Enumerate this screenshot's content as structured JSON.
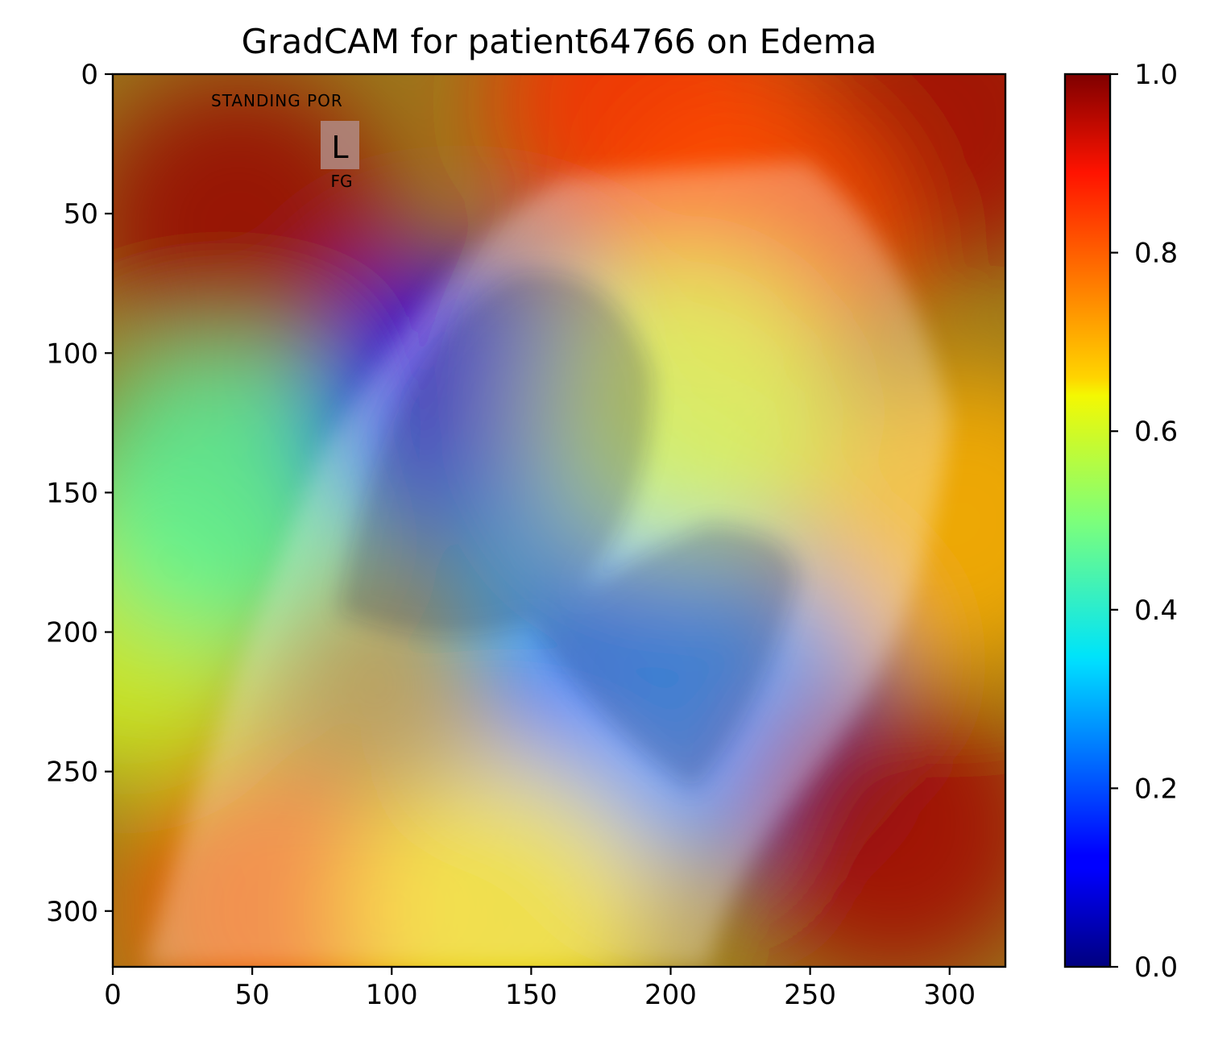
{
  "chart_data": {
    "type": "heatmap",
    "title": "GradCAM for patient64766 on Edema",
    "xlabel": "",
    "ylabel": "",
    "xlim": [
      0,
      320
    ],
    "ylim": [
      320,
      0
    ],
    "x_ticks": [
      0,
      50,
      100,
      150,
      200,
      250,
      300
    ],
    "y_ticks": [
      0,
      50,
      100,
      150,
      200,
      250,
      300
    ],
    "colormap": "jet",
    "colorbar": {
      "range": [
        0.0,
        1.0
      ],
      "ticks": [
        "0.0",
        "0.2",
        "0.4",
        "0.6",
        "0.8",
        "1.0"
      ]
    },
    "overlay_texts": [
      "STANDING POR",
      "L",
      "FG"
    ],
    "heat_regions": [
      {
        "label": "upper-left corner",
        "x": 45,
        "y": 55,
        "value": 0.98
      },
      {
        "label": "upper-right corner",
        "x": 300,
        "y": 15,
        "value": 0.97
      },
      {
        "label": "top center",
        "x": 190,
        "y": 10,
        "value": 0.86
      },
      {
        "label": "right upper area",
        "x": 230,
        "y": 60,
        "value": 0.82
      },
      {
        "label": "left edge middle",
        "x": 5,
        "y": 200,
        "value": 0.6
      },
      {
        "label": "left band",
        "x": 40,
        "y": 150,
        "value": 0.45
      },
      {
        "label": "upper lung",
        "x": 125,
        "y": 120,
        "value": 0.12
      },
      {
        "label": "mid lung",
        "x": 175,
        "y": 185,
        "value": 0.3
      },
      {
        "label": "lower lung",
        "x": 185,
        "y": 230,
        "value": 0.2
      },
      {
        "label": "lower right lung",
        "x": 225,
        "y": 230,
        "value": 0.25
      },
      {
        "label": "center band",
        "x": 205,
        "y": 120,
        "value": 0.6
      },
      {
        "label": "lower left",
        "x": 60,
        "y": 300,
        "value": 0.8
      },
      {
        "label": "bottom center",
        "x": 140,
        "y": 300,
        "value": 0.65
      },
      {
        "label": "right edge lower",
        "x": 280,
        "y": 270,
        "value": 0.97
      },
      {
        "label": "right edge middle",
        "x": 305,
        "y": 160,
        "value": 0.7
      }
    ]
  }
}
